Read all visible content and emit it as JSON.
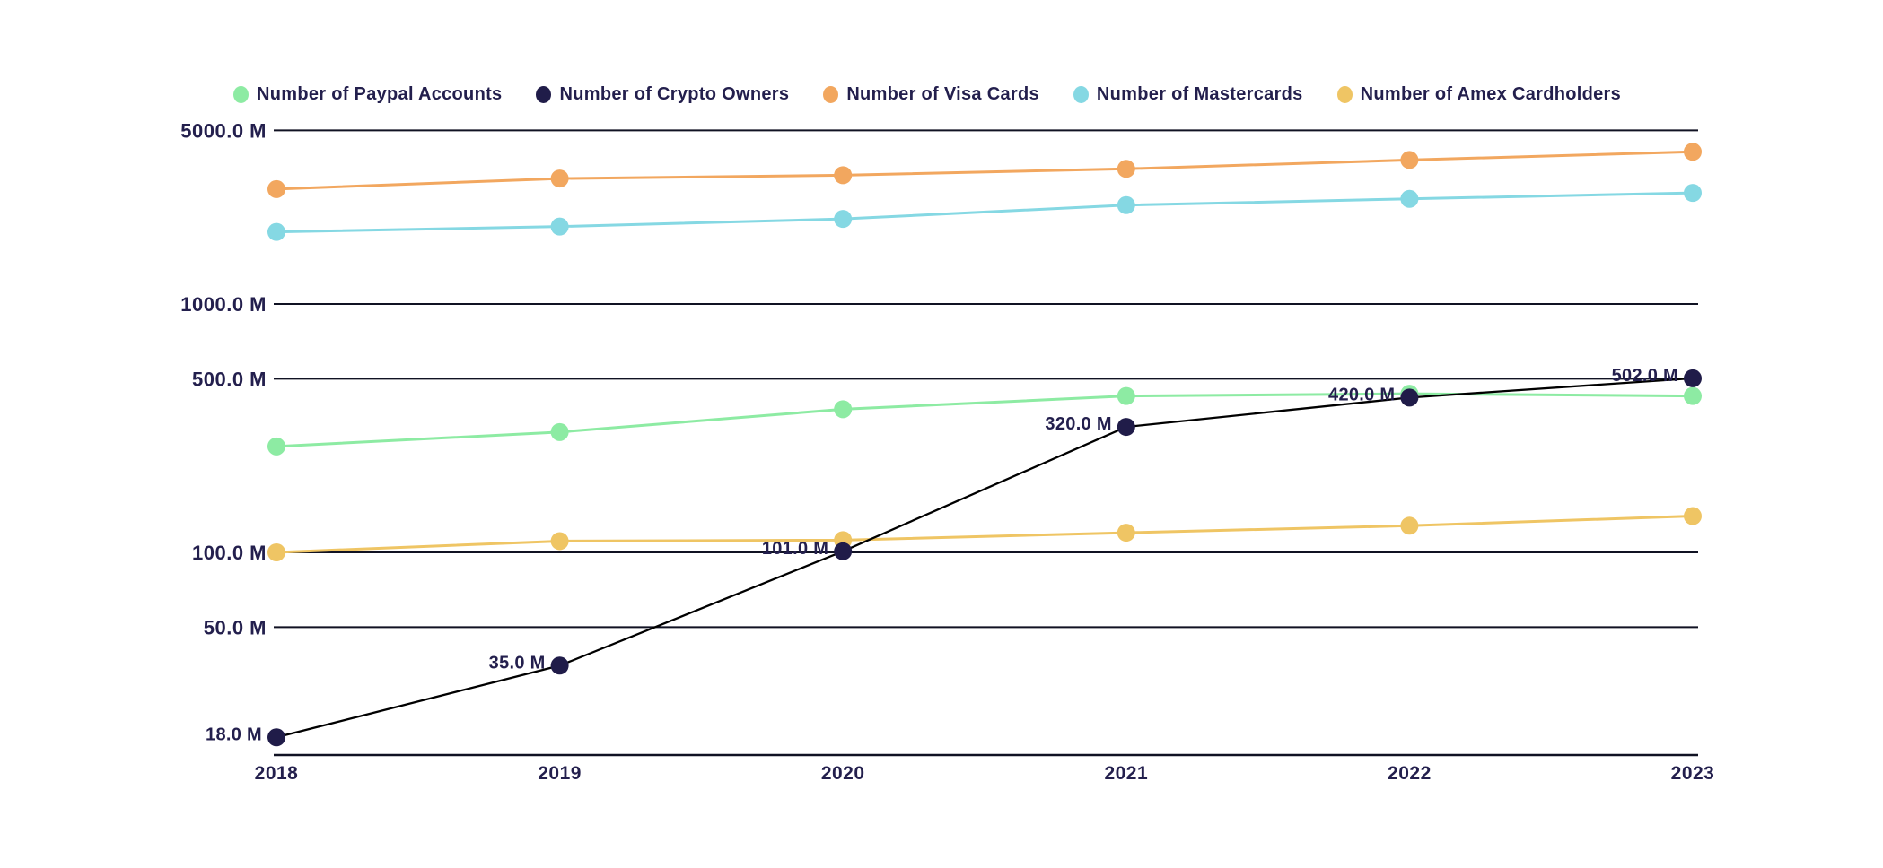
{
  "legend": {
    "items": [
      {
        "label": "Number of Paypal Accounts",
        "color": "#8deba3"
      },
      {
        "label": "Number of Crypto Owners",
        "color": "#201c49"
      },
      {
        "label": "Number of Visa Cards",
        "color": "#f2a75f"
      },
      {
        "label": "Number of Mastercards",
        "color": "#85d8e3"
      },
      {
        "label": "Number of Amex Cardholders",
        "color": "#efc564"
      }
    ]
  },
  "chart_data": {
    "type": "line",
    "title": "",
    "unit": "M (millions)",
    "x": [
      "2018",
      "2019",
      "2020",
      "2021",
      "2022",
      "2023"
    ],
    "y_axis": {
      "scale": "log",
      "tick_labels": [
        "5000.0 M",
        "1000.0 M",
        "500.0 M",
        "100.0 M",
        "50.0 M"
      ],
      "tick_values": [
        5000,
        1000,
        500,
        100,
        50
      ],
      "range_min": 15,
      "range_max": 5000,
      "grid": true
    },
    "legend_position": "top",
    "series": [
      {
        "name": "Number of Visa Cards",
        "color": "#f2a75f",
        "line_color": "#f2a75f",
        "values": [
          2900,
          3200,
          3300,
          3500,
          3800,
          4100
        ]
      },
      {
        "name": "Number of Mastercards",
        "color": "#85d8e3",
        "line_color": "#85d8e3",
        "values": [
          1950,
          2050,
          2200,
          2500,
          2650,
          2800
        ]
      },
      {
        "name": "Number of Paypal Accounts",
        "color": "#8deba3",
        "line_color": "#8deba3",
        "values": [
          267,
          305,
          377,
          426,
          435,
          426
        ]
      },
      {
        "name": "Number of Amex Cardholders",
        "color": "#efc564",
        "line_color": "#efc564",
        "values": [
          100,
          111,
          112,
          120,
          128,
          140
        ]
      },
      {
        "name": "Number of Crypto Owners",
        "color": "#201c49",
        "line_color": "#000000",
        "values": [
          18,
          35,
          101,
          320,
          420,
          502
        ],
        "point_labels": [
          "18.0 M",
          "35.0 M",
          "101.0 M",
          "320.0 M",
          "420.0 M",
          "502.0 M"
        ]
      }
    ]
  }
}
